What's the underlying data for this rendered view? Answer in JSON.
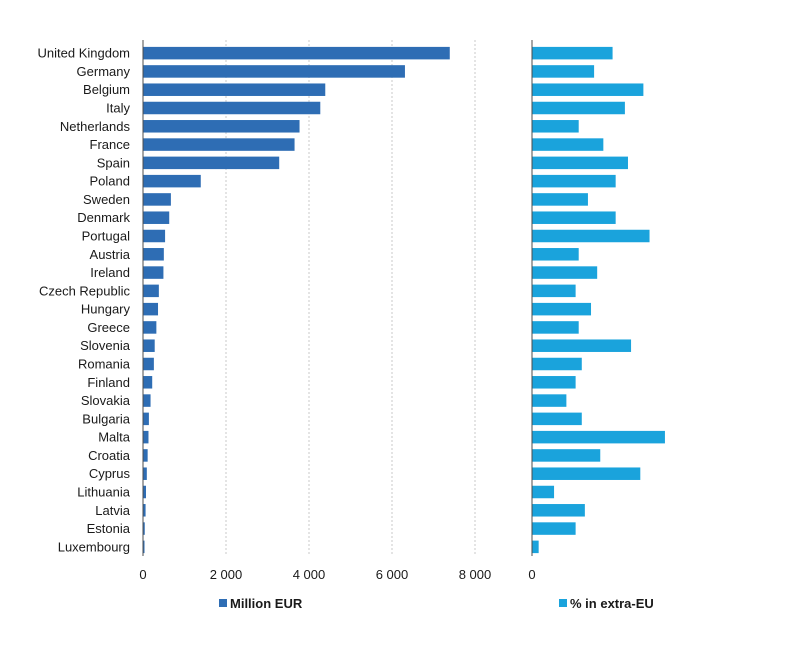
{
  "chart_data": [
    {
      "type": "bar",
      "orientation": "horizontal",
      "categories": [
        "United Kingdom",
        "Germany",
        "Belgium",
        "Italy",
        "Netherlands",
        "France",
        "Spain",
        "Poland",
        "Sweden",
        "Denmark",
        "Portugal",
        "Austria",
        "Ireland",
        "Czech Republic",
        "Hungary",
        "Greece",
        "Slovenia",
        "Romania",
        "Finland",
        "Slovakia",
        "Bulgaria",
        "Malta",
        "Croatia",
        "Cyprus",
        "Lithuania",
        "Latvia",
        "Estonia",
        "Luxembourg"
      ],
      "series": [
        {
          "name": "Million EUR",
          "color": "#2e6db4",
          "values": [
            7380,
            6300,
            4380,
            4260,
            3760,
            3640,
            3270,
            1380,
            660,
            620,
            520,
            490,
            480,
            370,
            350,
            310,
            270,
            250,
            210,
            170,
            130,
            120,
            100,
            80,
            60,
            50,
            30,
            10
          ]
        }
      ],
      "xlim": [
        0,
        10000
      ],
      "xticks": [
        "0",
        "2 000",
        "4 000",
        "6 000",
        "8 000"
      ],
      "grid": true,
      "legend": "bottom"
    },
    {
      "type": "bar",
      "orientation": "horizontal",
      "categories": [
        "United Kingdom",
        "Germany",
        "Belgium",
        "Italy",
        "Netherlands",
        "France",
        "Spain",
        "Poland",
        "Sweden",
        "Denmark",
        "Portugal",
        "Austria",
        "Ireland",
        "Czech Republic",
        "Hungary",
        "Greece",
        "Slovenia",
        "Romania",
        "Finland",
        "Slovakia",
        "Bulgaria",
        "Malta",
        "Croatia",
        "Cyprus",
        "Lithuania",
        "Latvia",
        "Estonia",
        "Luxembourg"
      ],
      "series": [
        {
          "name": "% in extra-EU",
          "color": "#1aa3dc",
          "values": [
            2.6,
            2.0,
            3.6,
            3.0,
            1.5,
            2.3,
            3.1,
            2.7,
            1.8,
            2.7,
            3.8,
            1.5,
            2.1,
            1.4,
            1.9,
            1.5,
            3.2,
            1.6,
            1.4,
            1.1,
            1.6,
            4.3,
            2.2,
            3.5,
            0.7,
            1.7,
            1.4,
            0.2
          ]
        }
      ],
      "xlim": [
        0,
        10
      ],
      "xticks": [
        "0",
        "10"
      ],
      "grid": true,
      "legend": "bottom"
    }
  ]
}
